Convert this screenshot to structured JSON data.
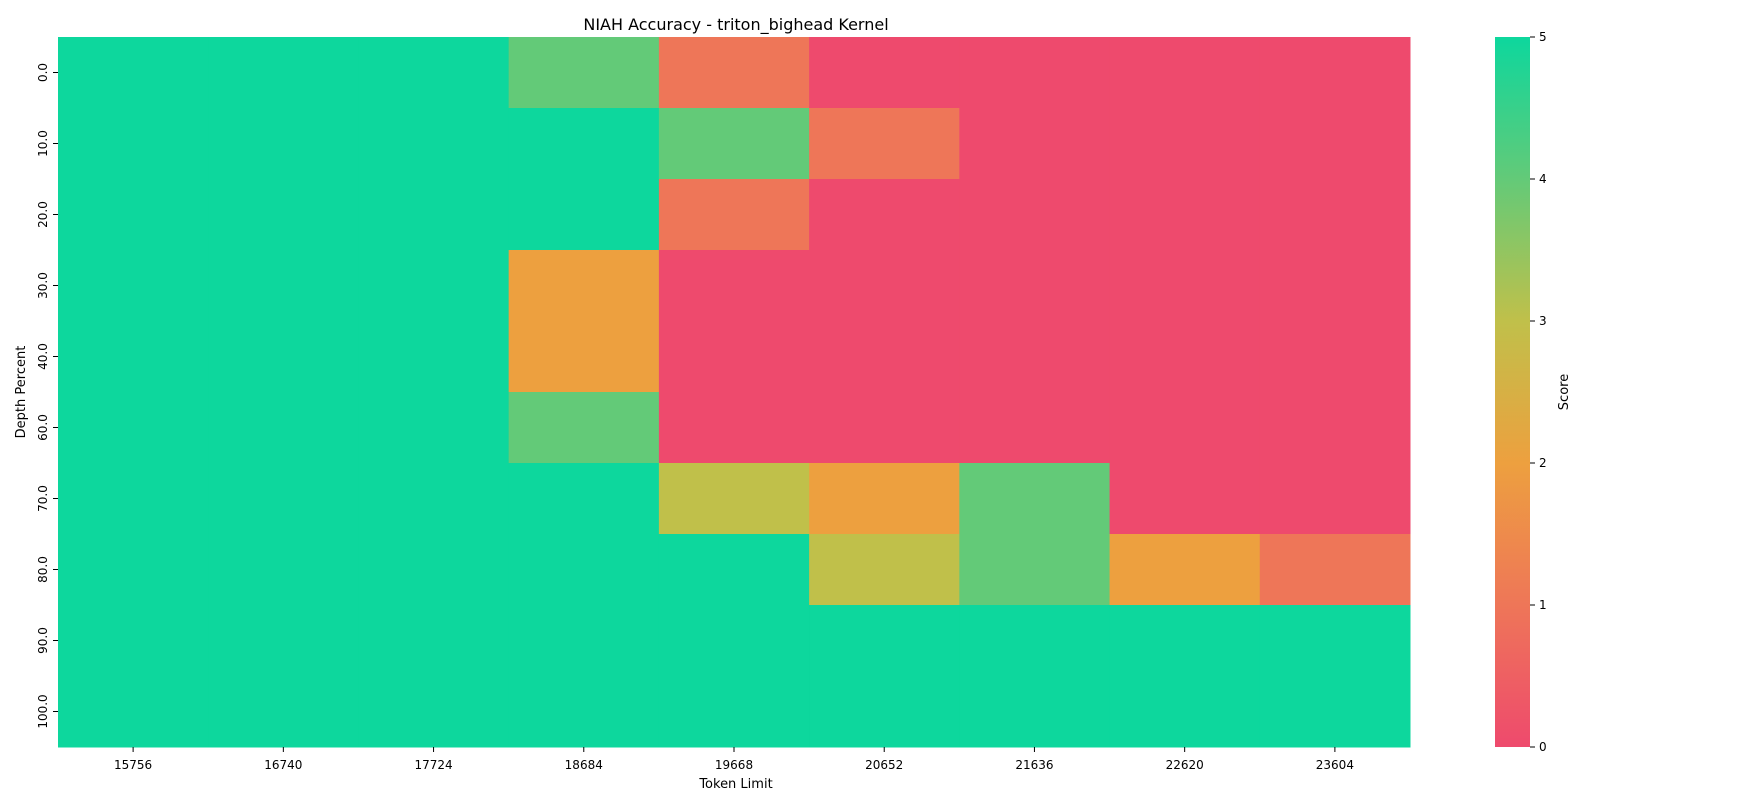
{
  "chart_data": {
    "type": "heatmap",
    "title": "NIAH Accuracy - triton_bighead Kernel",
    "xlabel": "Token Limit",
    "ylabel": "Depth Percent",
    "x_categories": [
      "15756",
      "16740",
      "17724",
      "18684",
      "19668",
      "20652",
      "21636",
      "22620",
      "23604"
    ],
    "y_categories": [
      "0.0",
      "10.0",
      "20.0",
      "30.0",
      "40.0",
      "60.0",
      "70.0",
      "80.0",
      "90.0",
      "100.0"
    ],
    "values": [
      [
        5,
        5,
        5,
        4,
        1,
        0,
        0,
        0,
        0
      ],
      [
        5,
        5,
        5,
        5,
        4,
        1,
        0,
        0,
        0
      ],
      [
        5,
        5,
        5,
        5,
        1,
        0,
        0,
        0,
        0
      ],
      [
        5,
        5,
        5,
        2,
        0,
        0,
        0,
        0,
        0
      ],
      [
        5,
        5,
        5,
        2,
        0,
        0,
        0,
        0,
        0
      ],
      [
        5,
        5,
        5,
        4,
        0,
        0,
        0,
        0,
        0
      ],
      [
        5,
        5,
        5,
        5,
        3,
        2,
        4,
        0,
        0
      ],
      [
        5,
        5,
        5,
        5,
        5,
        3,
        4,
        2,
        1
      ],
      [
        5,
        5,
        5,
        5,
        5,
        5,
        5,
        5,
        5
      ],
      [
        5,
        5,
        5,
        5,
        5,
        5,
        5,
        5,
        5
      ]
    ],
    "colorbar": {
      "label": "Score",
      "range": [
        0,
        5
      ],
      "ticks": [
        "0",
        "1",
        "2",
        "3",
        "4",
        "5"
      ]
    },
    "color_scale": [
      "#ee4a6d",
      "#ee7658",
      "#eda03f",
      "#c0c04a",
      "#63ca78",
      "#0dd79d"
    ],
    "grid": false
  }
}
